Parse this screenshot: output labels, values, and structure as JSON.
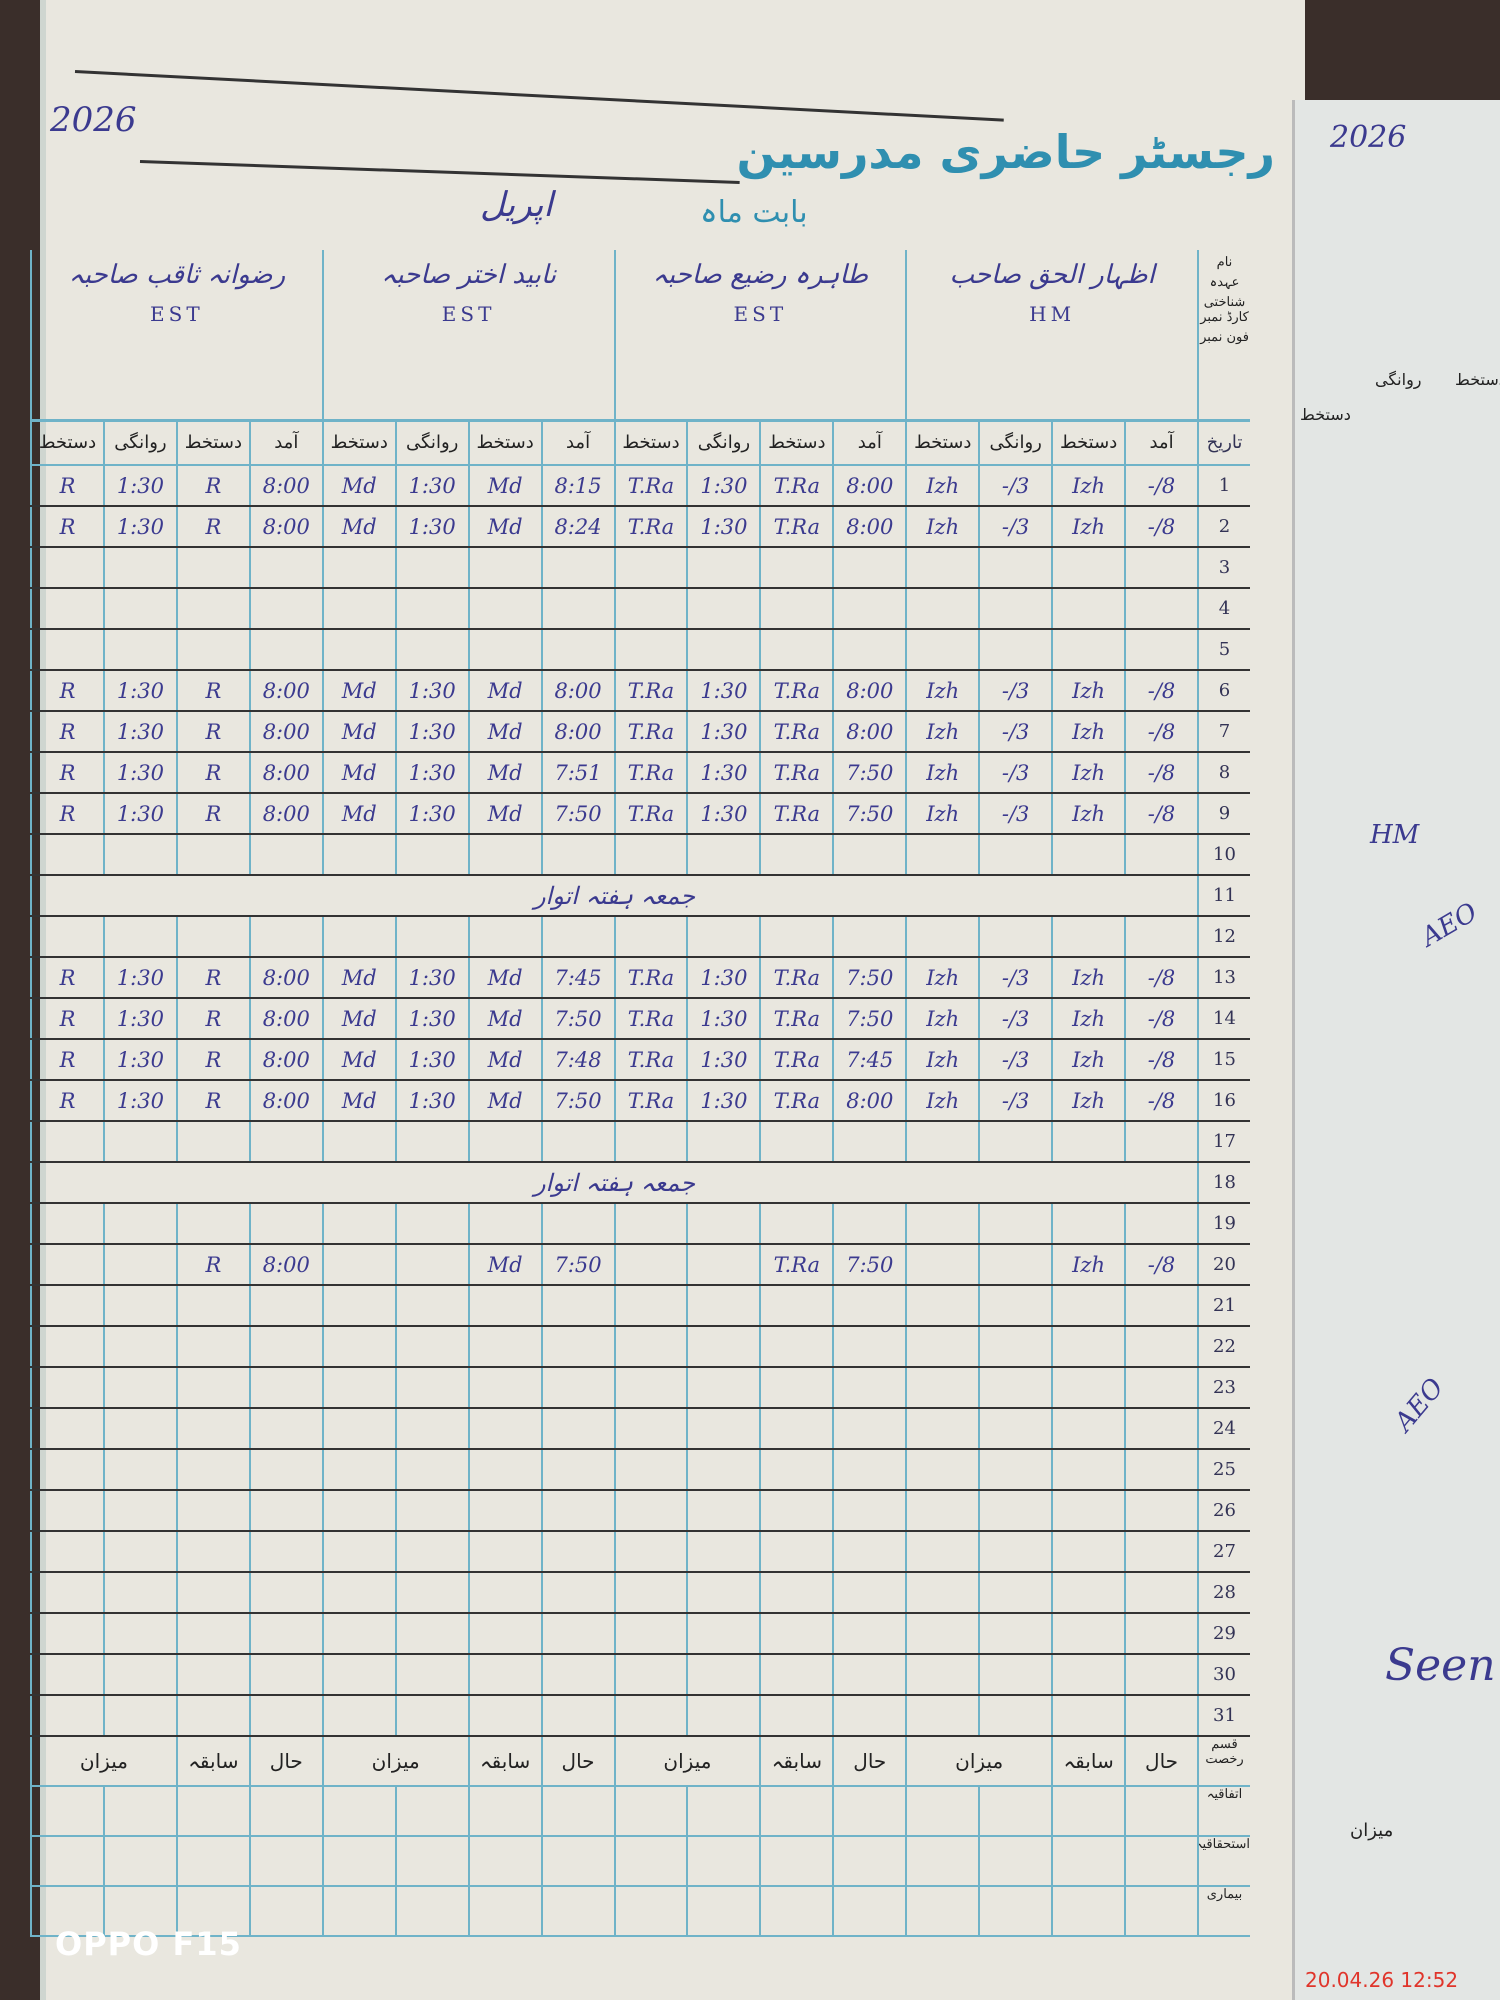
{
  "header": {
    "title": "رجسٹر حاضری مدرسین",
    "month_label": "بابت ماہ",
    "month": "اپریل",
    "year": "2026"
  },
  "left_labels": {
    "name": "نام",
    "designation": "عہدہ",
    "cnic": "شناختی کارڈ نمبر",
    "phone": "فون نمبر",
    "date": "تاریخ"
  },
  "subheaders": [
    "آمد",
    "دستخط",
    "روانگی",
    "دستخط"
  ],
  "teachers": [
    {
      "name": "اظہار الحق صاحب",
      "designation": "HM",
      "arrival_sign": "Izh",
      "departure_sign": "Izh"
    },
    {
      "name": "طاہرہ رضیع صاحبہ",
      "designation": "EST",
      "arrival_sign": "T.Ra",
      "departure_sign": "T.Ra"
    },
    {
      "name": "نابید اختر صاحبہ",
      "designation": "EST",
      "arrival_sign": "Md",
      "departure_sign": "Md"
    },
    {
      "name": "رضوانہ ثاقب صاحبہ",
      "designation": "EST",
      "arrival_sign": "R",
      "departure_sign": "R"
    }
  ],
  "rows": [
    {
      "date": "1",
      "t": [
        [
          "8/-",
          "3/-"
        ],
        [
          "8:00",
          "1:30"
        ],
        [
          "8:15",
          "1:30"
        ],
        [
          "8:00",
          "1:30"
        ]
      ]
    },
    {
      "date": "2",
      "t": [
        [
          "8/-",
          "3/-"
        ],
        [
          "8:00",
          "1:30"
        ],
        [
          "8:24",
          "1:30"
        ],
        [
          "8:00",
          "1:30"
        ]
      ]
    },
    {
      "date": "3",
      "off": true
    },
    {
      "date": "4",
      "off": true
    },
    {
      "date": "5",
      "off": true
    },
    {
      "date": "6",
      "t": [
        [
          "8/-",
          "3/-"
        ],
        [
          "8:00",
          "1:30"
        ],
        [
          "8:00",
          "1:30"
        ],
        [
          "8:00",
          "1:30"
        ]
      ]
    },
    {
      "date": "7",
      "t": [
        [
          "8/-",
          "3/-"
        ],
        [
          "8:00",
          "1:30"
        ],
        [
          "8:00",
          "1:30"
        ],
        [
          "8:00",
          "1:30"
        ]
      ]
    },
    {
      "date": "8",
      "t": [
        [
          "8/-",
          "3/-"
        ],
        [
          "7:50",
          "1:30"
        ],
        [
          "7:51",
          "1:30"
        ],
        [
          "8:00",
          "1:30"
        ]
      ]
    },
    {
      "date": "9",
      "t": [
        [
          "8/-",
          "3/-"
        ],
        [
          "7:50",
          "1:30"
        ],
        [
          "7:50",
          "1:30"
        ],
        [
          "8:00",
          "1:30"
        ]
      ]
    },
    {
      "date": "10",
      "off": true
    },
    {
      "date": "11",
      "off": true,
      "note": "جمعہ ہفتہ اتوار"
    },
    {
      "date": "12",
      "off": true
    },
    {
      "date": "13",
      "t": [
        [
          "8/-",
          "3/-"
        ],
        [
          "7:50",
          "1:30"
        ],
        [
          "7:45",
          "1:30"
        ],
        [
          "8:00",
          "1:30"
        ]
      ]
    },
    {
      "date": "14",
      "t": [
        [
          "8/-",
          "3/-"
        ],
        [
          "7:50",
          "1:30"
        ],
        [
          "7:50",
          "1:30"
        ],
        [
          "8:00",
          "1:30"
        ]
      ]
    },
    {
      "date": "15",
      "t": [
        [
          "8/-",
          "3/-"
        ],
        [
          "7:45",
          "1:30"
        ],
        [
          "7:48",
          "1:30"
        ],
        [
          "8:00",
          "1:30"
        ]
      ]
    },
    {
      "date": "16",
      "t": [
        [
          "8/-",
          "3/-"
        ],
        [
          "8:00",
          "1:30"
        ],
        [
          "7:50",
          "1:30"
        ],
        [
          "8:00",
          "1:30"
        ]
      ]
    },
    {
      "date": "17",
      "off": true
    },
    {
      "date": "18",
      "off": true,
      "note": "جمعہ ہفتہ اتوار"
    },
    {
      "date": "19",
      "off": true
    },
    {
      "date": "20",
      "t": [
        [
          "8/-",
          ""
        ],
        [
          "7:50",
          ""
        ],
        [
          "7:50",
          ""
        ],
        [
          "8:00",
          ""
        ]
      ]
    },
    {
      "date": "21"
    },
    {
      "date": "22"
    },
    {
      "date": "23"
    },
    {
      "date": "24"
    },
    {
      "date": "25"
    },
    {
      "date": "26"
    },
    {
      "date": "27"
    },
    {
      "date": "28"
    },
    {
      "date": "29"
    },
    {
      "date": "30"
    },
    {
      "date": "31"
    }
  ],
  "footer": {
    "leave_types": [
      "قسم رخصت",
      "اتفاقیہ",
      "استحقاقیہ",
      "بیماری"
    ],
    "cols": [
      "حال",
      "سابقہ",
      "میزان"
    ]
  },
  "right_page": {
    "year": "2026",
    "headers": [
      "دستخط",
      "روانگی",
      "دستخط"
    ],
    "total": "میزان",
    "notes": [
      "HM",
      "AEO",
      "Seen"
    ]
  },
  "photo": {
    "watermark": "OPPO F15",
    "timestamp": "20.04.26  12:52"
  },
  "colors": {
    "ink": "#3b3a8f",
    "rule_blue": "#6fb3c8",
    "title_blue": "#2f8fb0",
    "timestamp": "#e0352b"
  }
}
